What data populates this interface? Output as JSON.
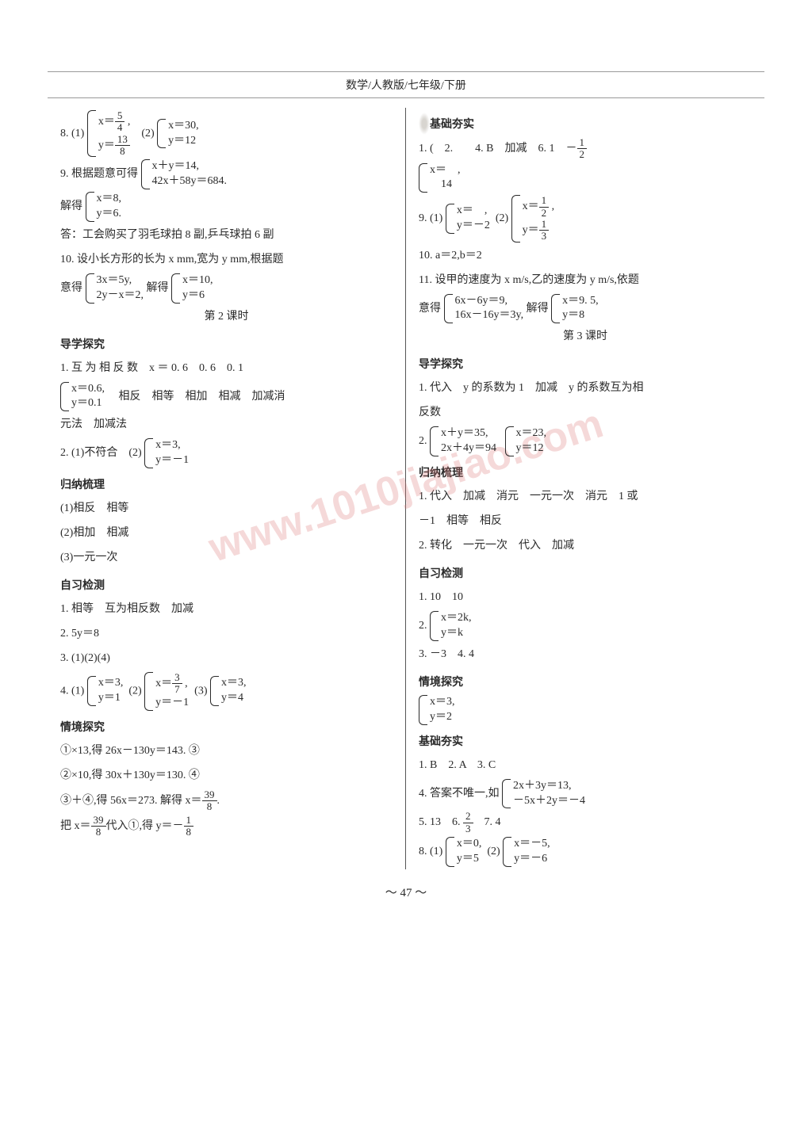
{
  "header": {
    "breadcrumb": "数学/人教版/七年级/下册"
  },
  "page_number": "〜 47 〜",
  "watermark": "www.1010jiajiao.com",
  "left": {
    "l1_prefix": "8. (1)",
    "l1_sys1_r1": "x＝",
    "l1_sys1_r2": "y＝",
    "l1_mid": "(2)",
    "l1_sys2_r1": "x＝30,",
    "l1_sys2_r2": "y＝12",
    "l2_prefix": "9. 根据题意可得",
    "l2_sys_r1": "x＋y＝14,",
    "l2_sys_r2": "42x＋58y＝684.",
    "l3_prefix": "解得",
    "l3_sys_r1": "x＝8,",
    "l3_sys_r2": "y＝6.",
    "l4": "答：工会购买了羽毛球拍 8 副,乒乓球拍 6 副",
    "l5": "10. 设小长方形的长为 x mm,宽为 y mm,根据题",
    "l6_prefix": "意得",
    "l6_sys1_r1": "3x＝5y,",
    "l6_sys1_r2": "2y－x＝2,",
    "l6_mid": "解得",
    "l6_sys2_r1": "x＝10,",
    "l6_sys2_r2": "y＝6",
    "s2_title": "第 2 课时",
    "s2_h1": "导学探究",
    "s2_1": "1. 互 为 相 反 数　x ＝ 0. 6　0. 6　0. 1",
    "s2_1b_sys_r1": "x＝0.6,",
    "s2_1b_sys_r2": "y＝0.1",
    "s2_1b_tail": "　相反　相等　相加　相减　加减消",
    "s2_1c": "元法　加减法",
    "s2_2_prefix": "2. (1)不符合　(2)",
    "s2_2_sys_r1": "x＝3,",
    "s2_2_sys_r2": "y＝－1",
    "s2_h2": "归纳梳理",
    "s2_g1": "(1)相反　相等",
    "s2_g2": "(2)相加　相减",
    "s2_g3": "(3)一元一次",
    "s2_h3": "自习检测",
    "s2_z1": "1. 相等　互为相反数　加减",
    "s2_z2": "2. 5y＝8",
    "s2_z3": "3. (1)(2)(4)",
    "s2_z4_prefix": "4. (1)",
    "s2_z4_s1_r1": "x＝3,",
    "s2_z4_s1_r2": "y＝1",
    "s2_z4_m1": "(2)",
    "s2_z4_s2_r1": "x＝",
    "s2_z4_s2_r2": "y＝－1",
    "s2_z4_m2": "(3)",
    "s2_z4_s3_r1": "x＝3,",
    "s2_z4_s3_r2": "y＝4",
    "s2_h4": "情境探究",
    "s2_q1": "①×13,得 26x－130y＝143. ③",
    "s2_q2": "②×10,得 30x＋130y＝130. ④",
    "s2_q3a": "③＋④,得 56x＝273. 解得 x＝",
    "s2_q4a": "把 x＝",
    "s2_q4b": "代入①,得 y＝－"
  },
  "right": {
    "h0": "基础夯实",
    "r1a": "1. (　2.　　4. B　加减　6. 1　－",
    "r2_sys_r1": "x＝　,　",
    "r2_sys_r2": "　14",
    "r3_prefix": "9. (1)",
    "r3_s1_r1": "x＝　,",
    "r3_s1_r2": "y＝－2",
    "r3_mid": "(2)",
    "r3_s2_r1": "x＝",
    "r3_s2_r2": "y＝",
    "r10": "10. a＝2,b＝2",
    "r11": "11. 设甲的速度为 x m/s,乙的速度为 y m/s,依题",
    "r11b_prefix": "意得",
    "r11b_s1_r1": "6x－6y＝9,",
    "r11b_s1_r2": "16x－16y＝3y,",
    "r11b_mid": "解得",
    "r11b_s2_r1": "x＝9. 5,",
    "r11b_s2_r2": "y＝8",
    "s3_title": "第 3 课时",
    "s3_h1": "导学探究",
    "s3_1": "1. 代入　y 的系数为 1　加减　y 的系数互为相",
    "s3_1b": "反数",
    "s3_2_prefix": "2.",
    "s3_2_s1_r1": "x＋y＝35,",
    "s3_2_s1_r2": "2x＋4y＝94",
    "s3_2_s2_r1": "x＝23,",
    "s3_2_s2_r2": "y＝12",
    "s3_h2": "归纳梳理",
    "s3_g1": "1. 代入　加减　消元　一元一次　消元　1 或",
    "s3_g1b": "－1　相等　相反",
    "s3_g2": "2. 转化　一元一次　代入　加减",
    "s3_h3": "自习检测",
    "s3_z1": "1. 10　10",
    "s3_z2_prefix": "2.",
    "s3_z2_r1": "x＝2k,",
    "s3_z2_r2": "y＝k",
    "s3_z3": "3. －3　4. 4",
    "s3_h4": "情境探究",
    "s3_q_r1": "x＝3,",
    "s3_q_r2": "y＝2",
    "s3_h5": "基础夯实",
    "s3_j1": "1. B　2. A　3. C",
    "s3_j4_prefix": "4. 答案不唯一,如",
    "s3_j4_r1": "2x＋3y＝13,",
    "s3_j4_r2": "－5x＋2y＝－4",
    "s3_j5a": "5. 13　6. ",
    "s3_j5b": "　7. 4",
    "s3_j8_prefix": "8. (1)",
    "s3_j8_s1_r1": "x＝0,",
    "s3_j8_s1_r2": "y＝5",
    "s3_j8_mid": "(2)",
    "s3_j8_s2_r1": "x＝－5,",
    "s3_j8_s2_r2": "y＝－6"
  },
  "fracs": {
    "5_4": {
      "n": "5",
      "d": "4"
    },
    "13_8": {
      "n": "13",
      "d": "8"
    },
    "1_2": {
      "n": "1",
      "d": "2"
    },
    "1_3": {
      "n": "1",
      "d": "3"
    },
    "3_7": {
      "n": "3",
      "d": "7"
    },
    "39_8": {
      "n": "39",
      "d": "8"
    },
    "1_8": {
      "n": "1",
      "d": "8"
    },
    "2_3": {
      "n": "2",
      "d": "3"
    }
  }
}
